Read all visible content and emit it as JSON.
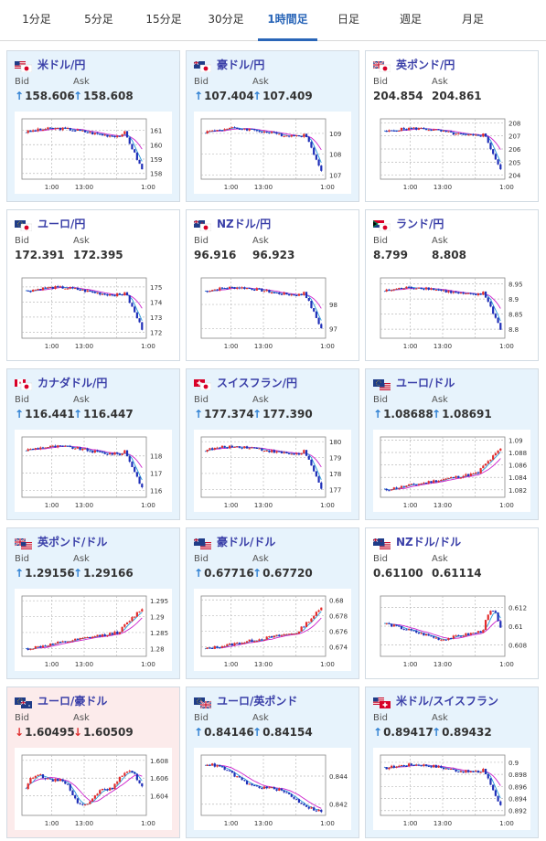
{
  "tabs": [
    {
      "label": "1分足",
      "active": false
    },
    {
      "label": "5分足",
      "active": false
    },
    {
      "label": "15分足",
      "active": false
    },
    {
      "label": "30分足",
      "active": false
    },
    {
      "label": "1時間足",
      "active": true
    },
    {
      "label": "日足",
      "active": false
    },
    {
      "label": "週足",
      "active": false
    },
    {
      "label": "月足",
      "active": false
    }
  ],
  "labels": {
    "bid": "Bid",
    "ask": "Ask"
  },
  "colors": {
    "up_bg": "#e7f3fc",
    "down_bg": "#fcebeb",
    "pair_name": "#3a3fa8",
    "up_arrow": "#2d7fd2",
    "down_arrow": "#e03030",
    "candle_up": "#e32b2b",
    "candle_down": "#1f2fb8",
    "ma1": "#cc22cc",
    "ma2": "#2a9ad8"
  },
  "pairs": [
    {
      "name": "米ドル/円",
      "flags": [
        "us",
        "jp"
      ],
      "bid": "158.606",
      "ask": "158.608",
      "dir": "up",
      "chart": {
        "type": "candlestick",
        "x_ticks": [
          "1:00",
          "13:00",
          "1:00"
        ],
        "y_ticks": [
          "161",
          "160",
          "159",
          "158"
        ],
        "y_range": [
          157.6,
          161.8
        ],
        "shape": "drop"
      }
    },
    {
      "name": "豪ドル/円",
      "flags": [
        "au",
        "jp"
      ],
      "bid": "107.404",
      "ask": "107.409",
      "dir": "up",
      "chart": {
        "type": "candlestick",
        "x_ticks": [
          "1:00",
          "13:00",
          "1:00"
        ],
        "y_ticks": [
          "109",
          "108",
          "107"
        ],
        "y_range": [
          106.8,
          109.7
        ],
        "shape": "drop"
      }
    },
    {
      "name": "英ポンド/円",
      "flags": [
        "gb",
        "jp"
      ],
      "bid": "204.854",
      "ask": "204.861",
      "dir": "none",
      "chart": {
        "type": "candlestick",
        "x_ticks": [
          "1:00",
          "13:00",
          "1:00"
        ],
        "y_ticks": [
          "208",
          "207",
          "206",
          "205",
          "204"
        ],
        "y_range": [
          203.7,
          208.3
        ],
        "shape": "drop"
      }
    },
    {
      "name": "ユーロ/円",
      "flags": [
        "eu",
        "jp"
      ],
      "bid": "172.391",
      "ask": "172.395",
      "dir": "none",
      "chart": {
        "type": "candlestick",
        "x_ticks": [
          "1:00",
          "13:00",
          "1:00"
        ],
        "y_ticks": [
          "175",
          "174",
          "173",
          "172"
        ],
        "y_range": [
          171.6,
          175.6
        ],
        "shape": "drop"
      }
    },
    {
      "name": "NZドル/円",
      "flags": [
        "nz",
        "jp"
      ],
      "bid": "96.916",
      "ask": "96.923",
      "dir": "none",
      "chart": {
        "type": "candlestick",
        "x_ticks": [
          "1:00",
          "13:00",
          "1:00"
        ],
        "y_ticks": [
          "98",
          "97"
        ],
        "y_range": [
          96.6,
          99.1
        ],
        "shape": "drop"
      }
    },
    {
      "name": "ランド/円",
      "flags": [
        "za",
        "jp"
      ],
      "bid": "8.799",
      "ask": "8.808",
      "dir": "none",
      "chart": {
        "type": "candlestick",
        "x_ticks": [
          "1:00",
          "13:00",
          "1:00"
        ],
        "y_ticks": [
          "8.95",
          "8.9",
          "8.85",
          "8.8"
        ],
        "y_range": [
          8.77,
          8.97
        ],
        "shape": "drop"
      }
    },
    {
      "name": "カナダドル/円",
      "flags": [
        "ca",
        "jp"
      ],
      "bid": "116.441",
      "ask": "116.447",
      "dir": "up",
      "chart": {
        "type": "candlestick",
        "x_ticks": [
          "1:00",
          "13:00",
          "1:00"
        ],
        "y_ticks": [
          "118",
          "117",
          "116"
        ],
        "y_range": [
          115.6,
          119.1
        ],
        "shape": "drop"
      }
    },
    {
      "name": "スイスフラン/円",
      "flags": [
        "ch",
        "jp"
      ],
      "bid": "177.374",
      "ask": "177.390",
      "dir": "up",
      "chart": {
        "type": "candlestick",
        "x_ticks": [
          "1:00",
          "13:00",
          "1:00"
        ],
        "y_ticks": [
          "180",
          "179",
          "178",
          "177"
        ],
        "y_range": [
          176.5,
          180.3
        ],
        "shape": "drop"
      }
    },
    {
      "name": "ユーロ/ドル",
      "flags": [
        "eu",
        "us"
      ],
      "bid": "1.08688",
      "ask": "1.08691",
      "dir": "up",
      "chart": {
        "type": "candlestick",
        "x_ticks": [
          "1:00",
          "13:00",
          "1:00"
        ],
        "y_ticks": [
          "1.09",
          "1.088",
          "1.086",
          "1.084",
          "1.082"
        ],
        "y_range": [
          1.0808,
          1.0905
        ],
        "shape": "rise"
      }
    },
    {
      "name": "英ポンド/ドル",
      "flags": [
        "gb",
        "us"
      ],
      "bid": "1.29156",
      "ask": "1.29166",
      "dir": "up",
      "chart": {
        "type": "candlestick",
        "x_ticks": [
          "1:00",
          "13:00",
          "1:00"
        ],
        "y_ticks": [
          "1.295",
          "1.29",
          "1.285",
          "1.28"
        ],
        "y_range": [
          1.2775,
          1.2965
        ],
        "shape": "rise"
      }
    },
    {
      "name": "豪ドル/ドル",
      "flags": [
        "au",
        "us"
      ],
      "bid": "0.67716",
      "ask": "0.67720",
      "dir": "up",
      "chart": {
        "type": "candlestick",
        "x_ticks": [
          "1:00",
          "13:00",
          "1:00"
        ],
        "y_ticks": [
          "0.68",
          "0.678",
          "0.676",
          "0.674"
        ],
        "y_range": [
          0.6728,
          0.6805
        ],
        "shape": "rise"
      }
    },
    {
      "name": "NZドル/ドル",
      "flags": [
        "nz",
        "us"
      ],
      "bid": "0.61100",
      "ask": "0.61114",
      "dir": "none",
      "chart": {
        "type": "candlestick",
        "x_ticks": [
          "1:00",
          "13:00",
          "1:00"
        ],
        "y_ticks": [
          "0.612",
          "0.61",
          "0.608"
        ],
        "y_range": [
          0.6068,
          0.6132
        ],
        "shape": "vrise"
      }
    },
    {
      "name": "ユーロ/豪ドル",
      "flags": [
        "eu",
        "au"
      ],
      "bid": "1.60495",
      "ask": "1.60509",
      "dir": "down",
      "chart": {
        "type": "candlestick",
        "x_ticks": [
          "1:00",
          "13:00",
          "1:00"
        ],
        "y_ticks": [
          "1.608",
          "1.606",
          "1.604"
        ],
        "y_range": [
          1.6018,
          1.6086
        ],
        "shape": "choppy"
      }
    },
    {
      "name": "ユーロ/英ポンド",
      "flags": [
        "eu",
        "gb"
      ],
      "bid": "0.84146",
      "ask": "0.84154",
      "dir": "up",
      "chart": {
        "type": "candlestick",
        "x_ticks": [
          "1:00",
          "13:00",
          "1:00"
        ],
        "y_ticks": [
          "0.844",
          "0.842"
        ],
        "y_range": [
          0.8412,
          0.8455
        ],
        "shape": "fall"
      }
    },
    {
      "name": "米ドル/スイスフラン",
      "flags": [
        "us",
        "ch"
      ],
      "bid": "0.89417",
      "ask": "0.89432",
      "dir": "up",
      "chart": {
        "type": "candlestick",
        "x_ticks": [
          "1:00",
          "13:00",
          "1:00"
        ],
        "y_ticks": [
          "0.9",
          "0.898",
          "0.896",
          "0.894",
          "0.892"
        ],
        "y_range": [
          0.8912,
          0.9012
        ],
        "shape": "drop"
      }
    }
  ]
}
